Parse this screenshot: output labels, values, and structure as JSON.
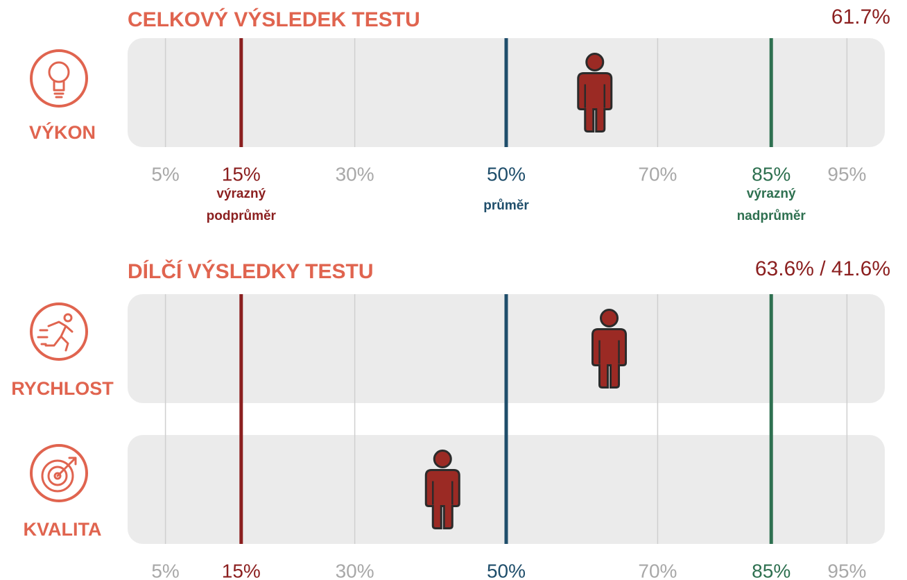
{
  "chart_data": [
    {
      "type": "percentile",
      "title": "CELKOVÝ VÝSLEDEK TESTU",
      "headline": "61.7%",
      "categories": [
        "VÝKON"
      ],
      "values": [
        61.7
      ],
      "marker_color": "#9b2a24",
      "xlim": [
        0,
        100
      ],
      "xticks": [
        {
          "value": 5,
          "label": "5%"
        },
        {
          "value": 15,
          "label": "15%"
        },
        {
          "value": 30,
          "label": "30%"
        },
        {
          "value": 50,
          "label": "50%"
        },
        {
          "value": 70,
          "label": "70%"
        },
        {
          "value": 85,
          "label": "85%"
        },
        {
          "value": 95,
          "label": "95%"
        }
      ],
      "tick_color": "#a8a8a8",
      "reference_lines": [
        {
          "value": 15,
          "color": "#8b1f1f",
          "label": [
            "výrazný",
            "podprůměr"
          ]
        },
        {
          "value": 50,
          "color": "#1f4e6b",
          "label": [
            "průměr"
          ]
        },
        {
          "value": 85,
          "color": "#2e7050",
          "label": [
            "výrazný",
            "nadprůměr"
          ]
        }
      ]
    },
    {
      "type": "percentile",
      "title": "DÍLČÍ VÝSLEDKY TESTU",
      "headline": "63.6% / 41.6%",
      "categories": [
        "RYCHLOST",
        "KVALITA"
      ],
      "values": [
        63.6,
        41.6
      ],
      "marker_color": "#9b2a24",
      "xlim": [
        0,
        100
      ],
      "xticks": [
        {
          "value": 5,
          "label": "5%"
        },
        {
          "value": 15,
          "label": "15%"
        },
        {
          "value": 30,
          "label": "30%"
        },
        {
          "value": 50,
          "label": "50%"
        },
        {
          "value": 70,
          "label": "70%"
        },
        {
          "value": 85,
          "label": "85%"
        },
        {
          "value": 95,
          "label": "95%"
        }
      ],
      "tick_color": "#a8a8a8",
      "reference_lines": [
        {
          "value": 15,
          "color": "#8b1f1f"
        },
        {
          "value": 50,
          "color": "#1f4e6b"
        },
        {
          "value": 85,
          "color": "#2e7050"
        }
      ]
    }
  ]
}
